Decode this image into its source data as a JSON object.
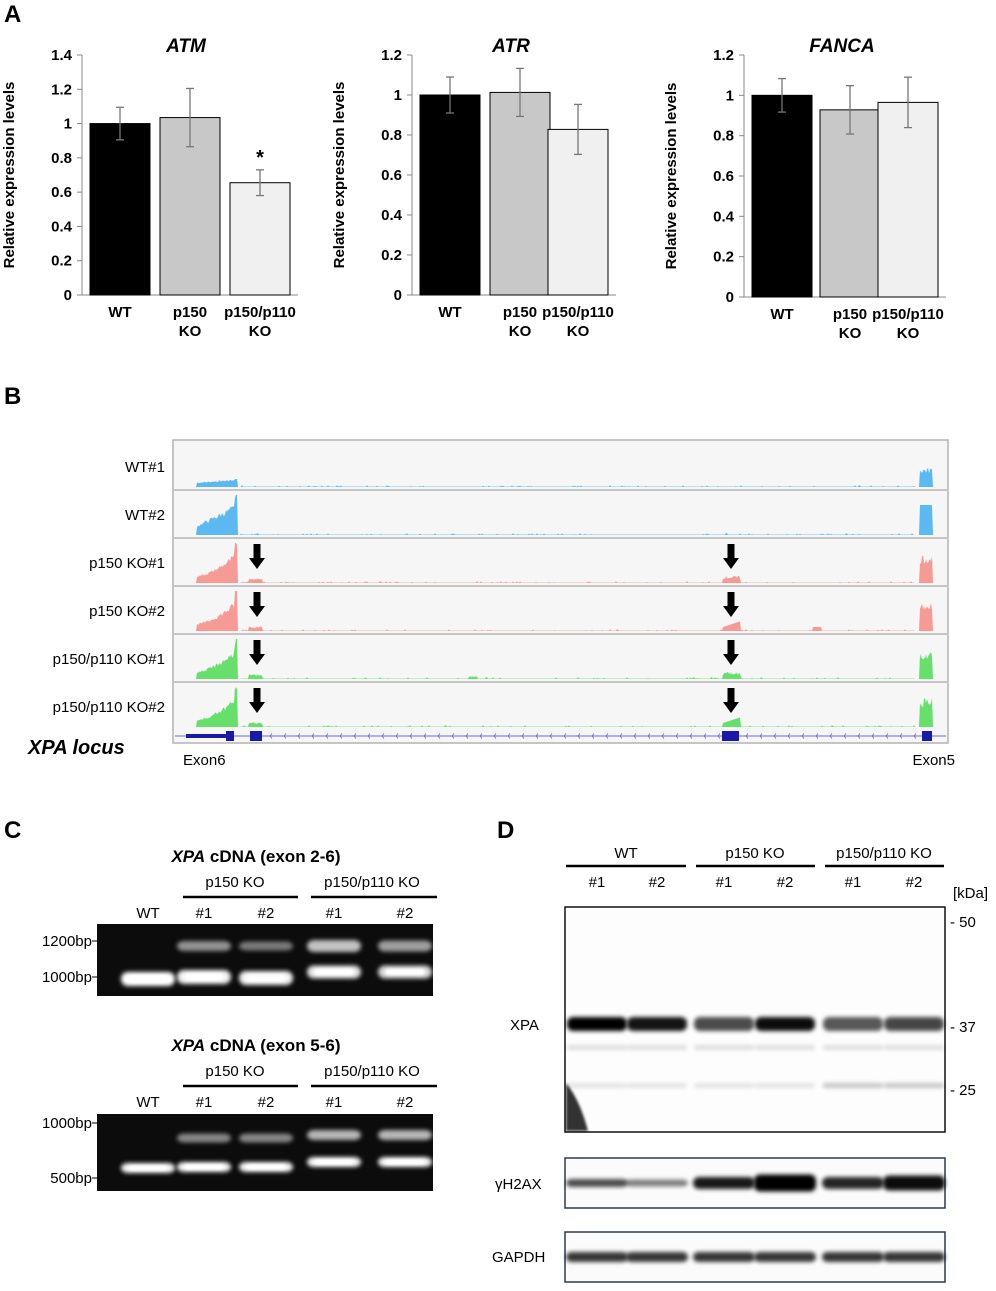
{
  "panel_letters": [
    "A",
    "B",
    "C",
    "D"
  ],
  "chart_data": [
    {
      "type": "bar",
      "title": "ATM",
      "ylabel": "Relative expression levels",
      "categories": [
        [
          "WT"
        ],
        [
          "p150",
          "KO"
        ],
        [
          "p150/p110",
          "KO"
        ]
      ],
      "values": [
        1.0,
        1.035,
        0.655
      ],
      "errors": [
        0.095,
        0.17,
        0.075
      ],
      "annotations": [
        "",
        "",
        "*"
      ],
      "ylim": [
        0,
        1.4
      ],
      "yticks": [
        0,
        0.2,
        0.4,
        0.6,
        0.8,
        1,
        1.2,
        1.4
      ],
      "ytick_labels": [
        "0",
        "0.2",
        "0.4",
        "0.6",
        "0.8",
        "1",
        "1.2",
        "1.4"
      ],
      "bar_colors": [
        "#000000",
        "#c8c8c8",
        "#f0f0f0"
      ]
    },
    {
      "type": "bar",
      "title": "ATR",
      "ylabel": "Relative expression levels",
      "categories": [
        [
          "WT"
        ],
        [
          "p150",
          "KO"
        ],
        [
          "p150/p110",
          "KO"
        ]
      ],
      "values": [
        1.0,
        1.013,
        0.828
      ],
      "errors": [
        0.09,
        0.12,
        0.125
      ],
      "annotations": [
        "",
        "",
        ""
      ],
      "ylim": [
        0,
        1.2
      ],
      "yticks": [
        0,
        0.2,
        0.4,
        0.6,
        0.8,
        1,
        1.2
      ],
      "ytick_labels": [
        "0",
        "0.2",
        "0.4",
        "0.6",
        "0.8",
        "1",
        "1.2"
      ],
      "bar_colors": [
        "#000000",
        "#c8c8c8",
        "#f0f0f0"
      ]
    },
    {
      "type": "bar",
      "title": "FANCA",
      "ylabel": "Relative expression levels",
      "categories": [
        [
          "WT"
        ],
        [
          "p150",
          "KO"
        ],
        [
          "p150/p110",
          "KO"
        ]
      ],
      "values": [
        1.0,
        0.928,
        0.965
      ],
      "errors": [
        0.083,
        0.12,
        0.125
      ],
      "annotations": [
        "",
        "",
        ""
      ],
      "ylim": [
        0,
        1.2
      ],
      "yticks": [
        0,
        0.2,
        0.4,
        0.6,
        0.8,
        1,
        1.2
      ],
      "ytick_labels": [
        "0",
        "0.2",
        "0.4",
        "0.6",
        "0.8",
        "1",
        "1.2"
      ],
      "bar_colors": [
        "#000000",
        "#c8c8c8",
        "#f0f0f0"
      ]
    }
  ],
  "panel_b": {
    "tracks": [
      {
        "label": "WT#1",
        "color": "#5bb8f0",
        "arrows": false,
        "profile": "wt1"
      },
      {
        "label": "WT#2",
        "color": "#5bb8f0",
        "arrows": false,
        "profile": "wt2"
      },
      {
        "label": "p150 KO#1",
        "color": "#f59a94",
        "arrows": true,
        "profile": "ko1"
      },
      {
        "label": "p150 KO#2",
        "color": "#f59a94",
        "arrows": true,
        "profile": "ko2"
      },
      {
        "label": "p150/p110 KO#1",
        "color": "#66e06a",
        "arrows": true,
        "profile": "dko1"
      },
      {
        "label": "p150/p110 KO#2",
        "color": "#66e06a",
        "arrows": true,
        "profile": "dko2"
      }
    ],
    "locus_label_main": "XPA",
    "locus_label_suffix": " locus",
    "exon_left": "Exon6",
    "exon_right": "Exon5",
    "gene_color": "#1a1aa8"
  },
  "panel_c": {
    "gels": [
      {
        "title_gene": "XPA",
        "title_rest": " cDNA (exon 2-6)",
        "lanes": [
          "WT",
          "#1",
          "#2",
          "#1",
          "#2"
        ],
        "groups": [
          "p150 KO",
          "p150/p110 KO"
        ],
        "markers": [
          "1200bp",
          "1000bp"
        ]
      },
      {
        "title_gene": "XPA",
        "title_rest": " cDNA (exon 5-6)",
        "lanes": [
          "WT",
          "#1",
          "#2",
          "#1",
          "#2"
        ],
        "groups": [
          "p150 KO",
          "p150/p110 KO"
        ],
        "markers": [
          "1000bp",
          "500bp"
        ]
      }
    ]
  },
  "panel_d": {
    "groups": [
      "WT",
      "p150 KO",
      "p150/p110 KO"
    ],
    "lanes": [
      "#1",
      "#2",
      "#1",
      "#2",
      "#1",
      "#2"
    ],
    "kda_label": "[kDa]",
    "markers": [
      "- 50",
      "- 37",
      "- 25"
    ],
    "blots": [
      "XPA",
      "γH2AX",
      "GAPDH"
    ]
  }
}
